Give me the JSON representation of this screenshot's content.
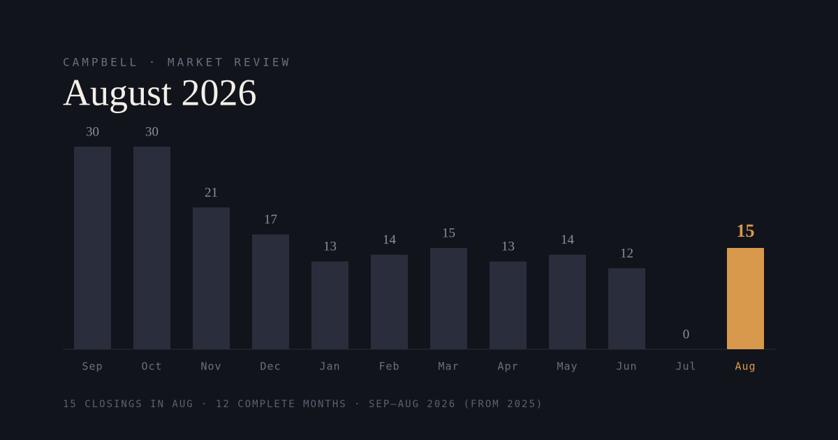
{
  "eyebrow": "CAMPBELL · MARKET REVIEW",
  "chart_data": {
    "type": "bar",
    "title": "August 2026",
    "categories": [
      "Sep",
      "Oct",
      "Nov",
      "Dec",
      "Jan",
      "Feb",
      "Mar",
      "Apr",
      "May",
      "Jun",
      "Jul",
      "Aug"
    ],
    "values": [
      30,
      30,
      21,
      17,
      13,
      14,
      15,
      13,
      14,
      12,
      0,
      15
    ],
    "colors": [
      "#2a2e3c",
      "#2a2e3c",
      "#2a2e3c",
      "#2a2e3c",
      "#2a2e3c",
      "#2a2e3c",
      "#2a2e3c",
      "#2a2e3c",
      "#2a2e3c",
      "#2a2e3c",
      "#2a2e3c",
      "#d9994c"
    ],
    "ylim": [
      0,
      30
    ],
    "grid": false
  },
  "footer": "15 CLOSINGS IN AUG · 12 COMPLETE MONTHS · SEP–AUG 2026 (FROM 2025)"
}
